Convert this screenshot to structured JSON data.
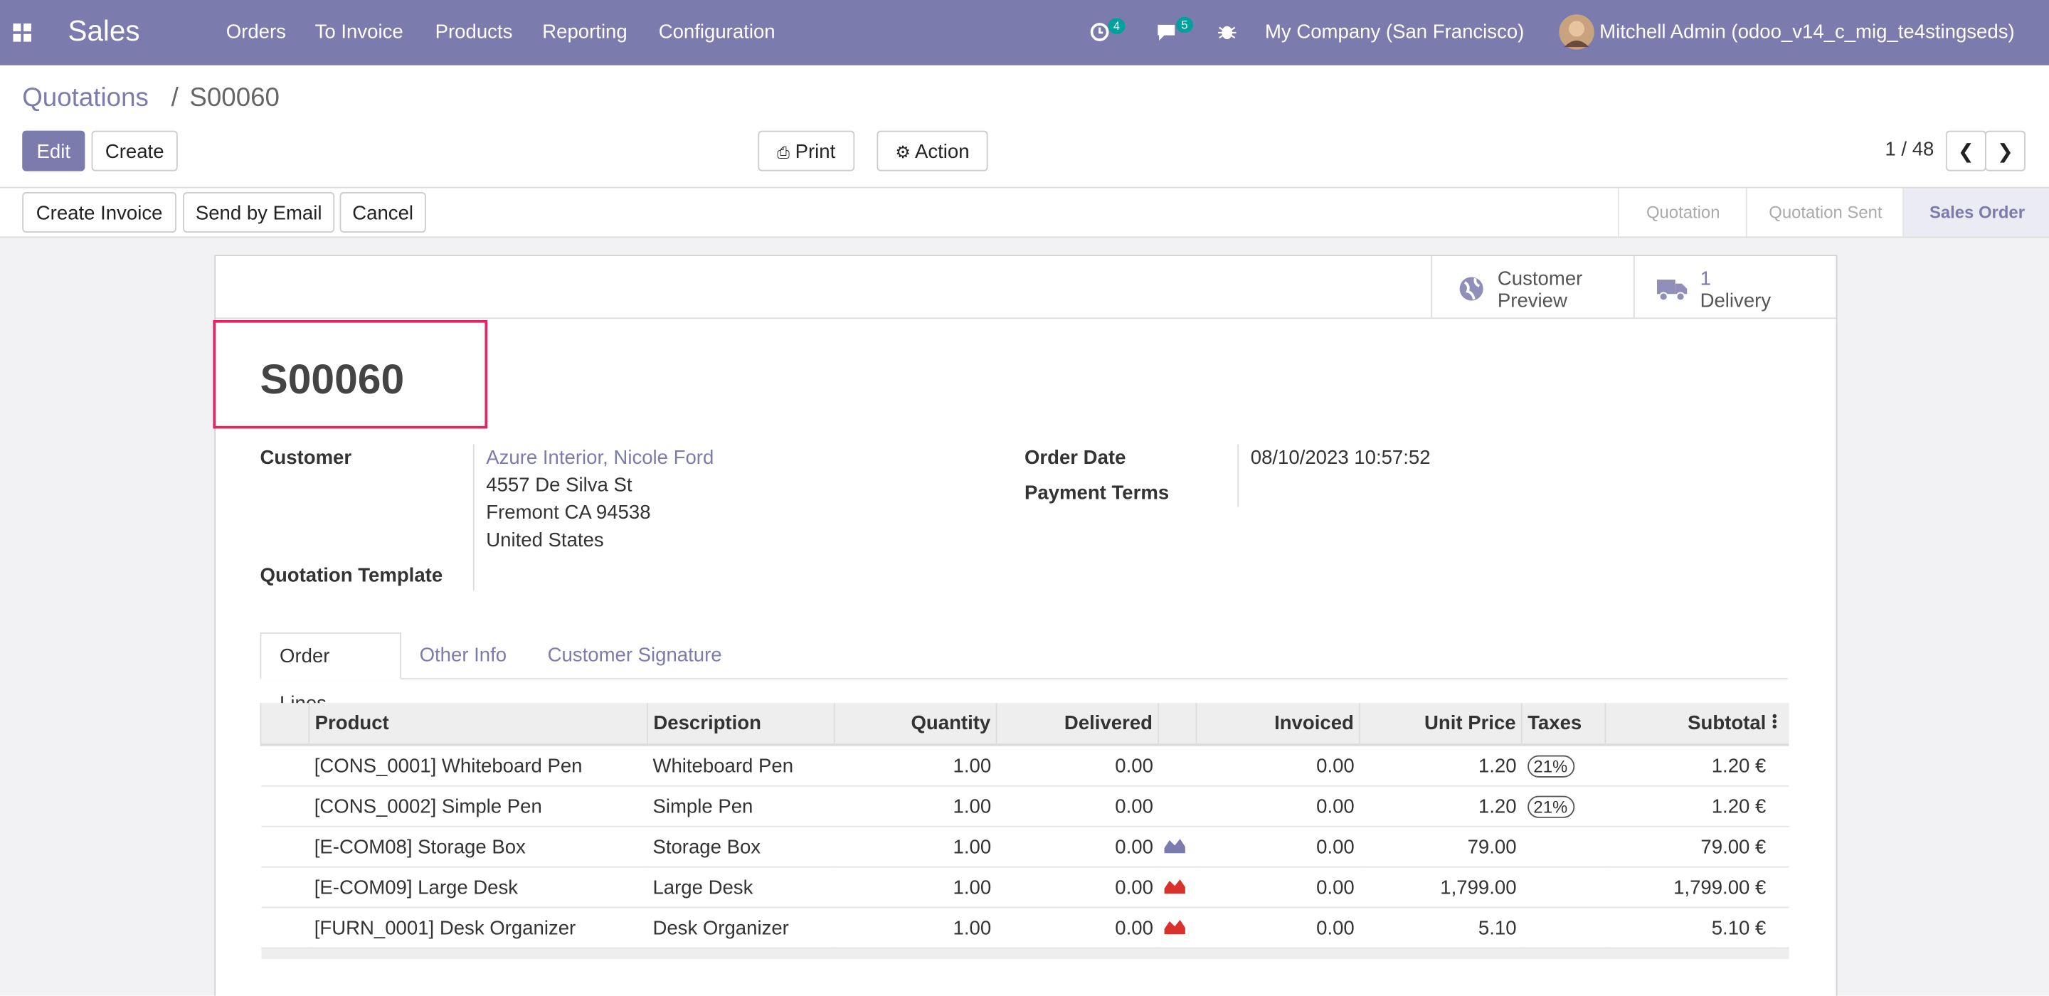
{
  "navbar": {
    "app": "Sales",
    "menu": [
      "Orders",
      "To Invoice",
      "Products",
      "Reporting",
      "Configuration"
    ],
    "activity_count": "4",
    "message_count": "5",
    "company": "My Company (San Francisco)",
    "user": "Mitchell Admin (odoo_v14_c_mig_te4stingseds)"
  },
  "breadcrumb": {
    "parent": "Quotations",
    "current": "S00060"
  },
  "buttons": {
    "edit": "Edit",
    "create": "Create",
    "print": "Print",
    "action": "Action"
  },
  "pager": "1 / 48",
  "header_buttons": [
    "Create Invoice",
    "Send by Email",
    "Cancel"
  ],
  "statusbar": {
    "steps": [
      "Quotation",
      "Quotation Sent",
      "Sales Order"
    ],
    "active": 2
  },
  "smart_buttons": {
    "preview": "Customer Preview",
    "delivery_count": "1",
    "delivery": "Delivery"
  },
  "form": {
    "name": "S00060",
    "customer": {
      "label": "Customer",
      "name": "Azure Interior, Nicole Ford",
      "address": [
        "4557 De Silva St",
        "Fremont CA 94538",
        "United States"
      ]
    },
    "quotation_template": {
      "label": "Quotation Template"
    },
    "order_date": {
      "label": "Order Date",
      "value": "08/10/2023 10:57:52"
    },
    "payment_terms": {
      "label": "Payment Terms"
    }
  },
  "tabs": {
    "items": [
      "Order Lines",
      "Other Info",
      "Customer Signature"
    ],
    "active": 0
  },
  "table": {
    "columns": [
      "Product",
      "Description",
      "Quantity",
      "Delivered",
      "Invoiced",
      "Unit Price",
      "Taxes",
      "Subtotal"
    ],
    "rows": [
      {
        "cells": [
          "[CONS_0001] Whiteboard Pen",
          "Whiteboard Pen",
          "1.00",
          "0.00",
          "0.00",
          "1.20",
          "21%",
          "1.20 €"
        ],
        "forecast": null
      },
      {
        "cells": [
          "[CONS_0002] Simple Pen",
          "Simple Pen",
          "1.00",
          "0.00",
          "0.00",
          "1.20",
          "21%",
          "1.20 €"
        ],
        "forecast": null
      },
      {
        "cells": [
          "[E-COM08] Storage Box",
          "Storage Box",
          "1.00",
          "0.00",
          "0.00",
          "79.00",
          null,
          "79.00 €"
        ],
        "forecast": "#7c7bad"
      },
      {
        "cells": [
          "[E-COM09] Large Desk",
          "Large Desk",
          "1.00",
          "0.00",
          "0.00",
          "1,799.00",
          null,
          "1,799.00 €"
        ],
        "forecast": "#d9312b"
      },
      {
        "cells": [
          "[FURN_0001] Desk Organizer",
          "Desk Organizer",
          "1.00",
          "0.00",
          "0.00",
          "5.10",
          null,
          "5.10 €"
        ],
        "forecast": "#d9312b"
      }
    ]
  }
}
